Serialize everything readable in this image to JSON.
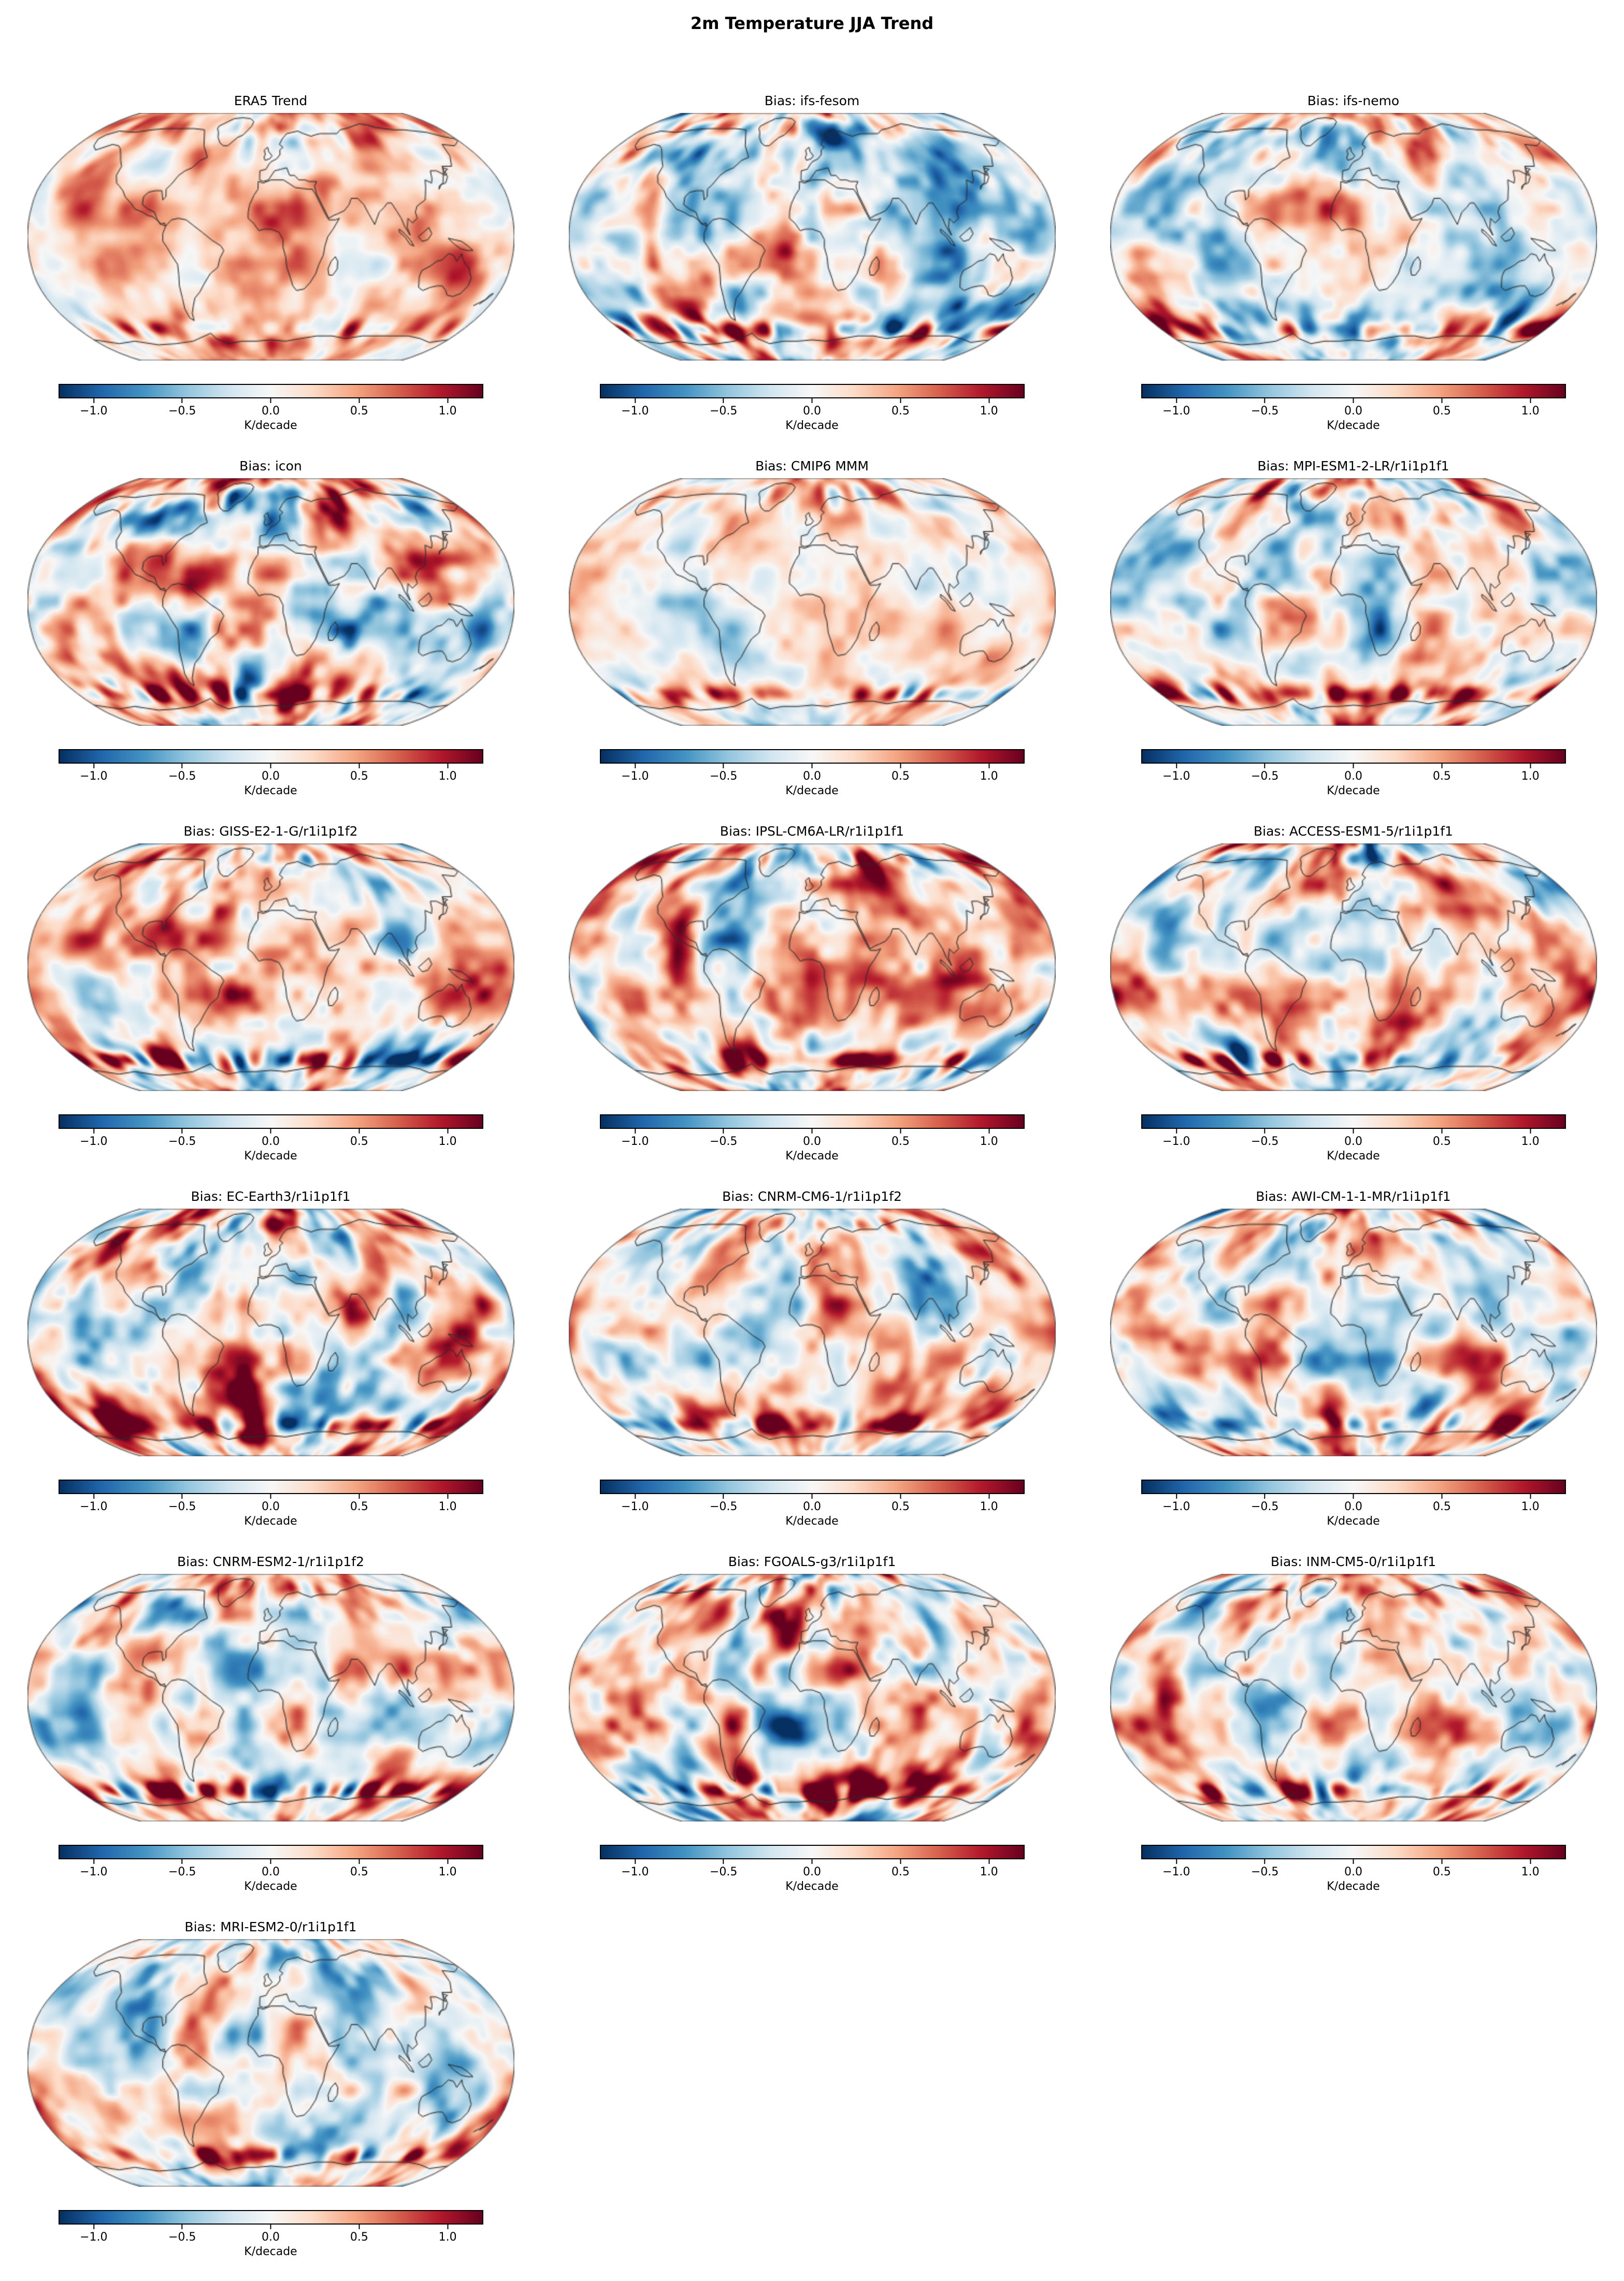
{
  "chart_data": {
    "type": "heatmap",
    "figure_title": "2m Temperature JJA Trend",
    "projection": "Robinson",
    "units_label": "K/decade",
    "colorbar_ticks": [
      -1.0,
      -0.5,
      0.0,
      0.5,
      1.0
    ],
    "colorbar_tick_labels": [
      "−1.0",
      "−0.5",
      "0.0",
      "0.5",
      "1.0"
    ],
    "colorbar_range": [
      -1.2,
      1.2
    ],
    "colormap": "RdBu_r",
    "colormap_stops": [
      "#053061",
      "#2166ac",
      "#4393c3",
      "#92c5de",
      "#d1e5f0",
      "#f7f7f7",
      "#fddbc7",
      "#f4a582",
      "#d6604d",
      "#b2182b",
      "#67001f"
    ],
    "coastline_color": "#2b2b2b",
    "grid": {
      "rows": 6,
      "cols": 3
    },
    "panels": [
      {
        "title": "ERA5 Trend",
        "kind": "reference",
        "description": "Observed JJA 2m temperature trend: widespread warming (0.2–1 K/decade) over most land, strongest over the Arctic, Canada, Europe, Siberia and the Middle East; cooling patches over the Southern Ocean."
      },
      {
        "title": "Bias: ifs-fesom",
        "kind": "bias",
        "description": "Cold bias over the Arctic, North Atlantic and a pronounced cold pool in the Atlantic sector of the Southern Ocean; warm bias over Australia, South Asia and near the Antarctic coast."
      },
      {
        "title": "Bias: ifs-nemo",
        "kind": "bias",
        "description": "Warm bias over the subtropical North Atlantic, Middle East and Australia; weak cool bias over large parts of the Pacific and Southern Ocean."
      },
      {
        "title": "Bias: icon",
        "kind": "bias",
        "description": "Strong warm bias over Siberia, the Arctic and the Antarctic coastal band; cool bias over South America and parts of the North Pacific."
      },
      {
        "title": "Bias: CMIP6 MMM",
        "kind": "bias",
        "description": "Multi-model mean: mostly small-amplitude biases; light warm bias over oceans with a stronger warm band along the Antarctic coast."
      },
      {
        "title": "Bias: MPI-ESM1-2-LR/r1i1p1f1",
        "kind": "bias",
        "description": "Moderate mixed biases; warm over South America and the Antarctic coastal band, cool patches over Siberia and the North Pacific."
      },
      {
        "title": "Bias: GISS-E2-1-G/r1i1p1f2",
        "kind": "bias",
        "description": "Warm bias over the tropics and a Southern Ocean warm ring; cold bias over eastern North America and the North Atlantic."
      },
      {
        "title": "Bias: IPSL-CM6A-LR/r1i1p1f1",
        "kind": "bias",
        "description": "Warm bias over northern continents and a strong warm ring along the Antarctic sea-ice edge; scattered cool patches over oceans."
      },
      {
        "title": "Bias: ACCESS-ESM1-5/r1i1p1f1",
        "kind": "bias",
        "description": "Widespread warm bias, strongest along the Antarctic coastline and in the North Atlantic; few cool patches."
      },
      {
        "title": "Bias: EC-Earth3/r1i1p1f1",
        "kind": "bias",
        "description": "Strong warm bias over North America, the North Atlantic and Siberia; pronounced warm band around Antarctica."
      },
      {
        "title": "Bias: CNRM-CM6-1/r1i1p1f2",
        "kind": "bias",
        "description": "Cold bias over the Arctic, Greenland and North Atlantic; warm band along the Antarctic coast; weak biases elsewhere."
      },
      {
        "title": "Bias: AWI-CM-1-1-MR/r1i1p1f1",
        "kind": "bias",
        "description": "Mixed biases: warm over Africa and the Antarctic coastal band, cool over parts of the Arctic and South Pacific."
      },
      {
        "title": "Bias: CNRM-ESM2-1/r1i1p1f2",
        "kind": "bias",
        "description": "Moderate mixed biases with warm patches over South America and Australia and a warm ring near Antarctica."
      },
      {
        "title": "Bias: FGOALS-g3/r1i1p1f1",
        "kind": "bias",
        "description": "Strong warm bias over the Arctic, Siberia and North Atlantic; cold pool in the Atlantic sector of the Southern Ocean."
      },
      {
        "title": "Bias: INM-CM5-0/r1i1p1f1",
        "kind": "bias",
        "description": "Cold bias over the Arctic and Greenland; warm bias along the Antarctic coastal band and over the Middle East."
      },
      {
        "title": "Bias: MRI-ESM2-0/r1i1p1f1",
        "kind": "bias",
        "description": "Moderate mixed biases; warm band near the Antarctic coast and warm patches over Siberia; cool patches over the North Pacific."
      }
    ]
  }
}
